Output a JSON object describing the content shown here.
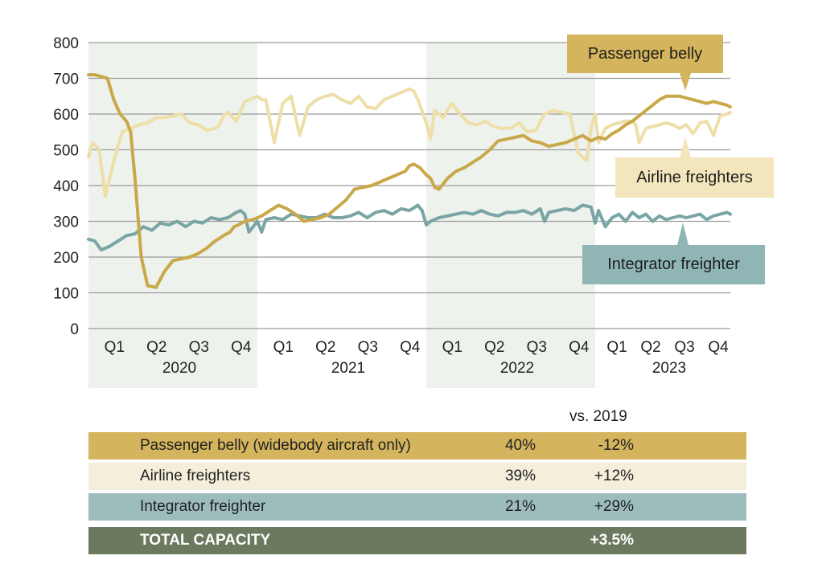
{
  "chart_data": {
    "type": "line",
    "title": "",
    "xlabel": "",
    "ylabel": "",
    "ylim": [
      0,
      800
    ],
    "yticks": [
      "0",
      "100",
      "200",
      "300",
      "400",
      "500",
      "600",
      "700",
      "800"
    ],
    "grid": true,
    "years": [
      "2020",
      "2021",
      "2022",
      "2023"
    ],
    "quarters": [
      "Q1",
      "Q2",
      "Q3",
      "Q4"
    ],
    "shaded_years": [
      "2020",
      "2022"
    ],
    "x_unit": "quarter index (0 = start of 2020, 16 = end of 2023)",
    "series": [
      {
        "name": "Passenger belly",
        "color": "#c9a84a",
        "x": [
          0,
          0.15,
          0.3,
          0.45,
          0.6,
          0.75,
          0.9,
          1.0,
          1.1,
          1.25,
          1.4,
          1.6,
          1.8,
          2.0,
          2.2,
          2.4,
          2.6,
          2.8,
          3.0,
          3.2,
          3.35,
          3.45,
          3.55,
          3.7,
          3.9,
          4.1,
          4.3,
          4.5,
          4.7,
          4.9,
          5.1,
          5.3,
          5.5,
          5.7,
          5.9,
          6.1,
          6.3,
          6.5,
          6.7,
          6.9,
          7.1,
          7.3,
          7.5,
          7.6,
          7.7,
          7.85,
          8.0,
          8.1,
          8.2,
          8.3,
          8.5,
          8.7,
          8.9,
          9.1,
          9.3,
          9.5,
          9.7,
          9.9,
          10.1,
          10.3,
          10.5,
          10.7,
          10.9,
          11.1,
          11.3,
          11.5,
          11.7,
          11.9,
          12.1,
          12.3,
          12.5,
          12.7,
          12.9,
          13.1,
          13.3,
          13.5,
          13.7,
          13.9,
          14.1,
          14.3,
          14.5,
          14.7,
          14.9,
          15.1,
          15.3,
          15.5,
          15.7,
          15.9,
          16.0
        ],
        "values": [
          710,
          710,
          705,
          700,
          640,
          600,
          580,
          550,
          420,
          200,
          120,
          115,
          160,
          190,
          195,
          200,
          210,
          225,
          245,
          260,
          270,
          285,
          290,
          300,
          305,
          315,
          330,
          345,
          335,
          320,
          300,
          305,
          310,
          320,
          340,
          360,
          390,
          395,
          400,
          410,
          420,
          430,
          440,
          455,
          460,
          450,
          430,
          420,
          395,
          390,
          420,
          440,
          450,
          465,
          480,
          500,
          525,
          530,
          535,
          540,
          525,
          520,
          510,
          515,
          520,
          530,
          540,
          525,
          535,
          530,
          545,
          555,
          570,
          580,
          595,
          610,
          625,
          640,
          650,
          650,
          650,
          645,
          640,
          635,
          630,
          635,
          630,
          625,
          620
        ]
      },
      {
        "name": "Airline freighters",
        "color": "#eedfa9",
        "x": [
          0,
          0.1,
          0.25,
          0.4,
          0.5,
          0.6,
          0.8,
          1.0,
          1.2,
          1.4,
          1.6,
          1.8,
          2.0,
          2.2,
          2.4,
          2.6,
          2.8,
          3.0,
          3.1,
          3.2,
          3.3,
          3.5,
          3.7,
          3.9,
          4.0,
          4.1,
          4.2,
          4.4,
          4.6,
          4.8,
          5.0,
          5.2,
          5.4,
          5.6,
          5.8,
          6.0,
          6.2,
          6.4,
          6.6,
          6.8,
          7.0,
          7.2,
          7.4,
          7.6,
          7.7,
          7.8,
          8.0,
          8.1,
          8.2,
          8.4,
          8.6,
          8.8,
          9.0,
          9.2,
          9.4,
          9.6,
          9.8,
          10.0,
          10.2,
          10.4,
          10.6,
          10.7,
          10.8,
          11.0,
          11.2,
          11.4,
          11.6,
          11.8,
          11.9,
          12.0,
          12.1,
          12.2,
          12.3,
          12.5,
          12.7,
          12.9,
          13.1,
          13.2,
          13.3,
          13.5,
          13.7,
          13.9,
          14.1,
          14.3,
          14.5,
          14.7,
          14.9,
          15.1,
          15.3,
          15.5,
          15.7,
          15.9,
          16.0
        ],
        "values": [
          480,
          520,
          500,
          370,
          420,
          470,
          550,
          560,
          570,
          575,
          590,
          590,
          595,
          600,
          575,
          570,
          555,
          560,
          570,
          595,
          605,
          580,
          635,
          645,
          650,
          640,
          640,
          520,
          630,
          650,
          540,
          620,
          640,
          650,
          655,
          640,
          630,
          650,
          620,
          615,
          640,
          650,
          660,
          670,
          665,
          640,
          575,
          530,
          610,
          590,
          630,
          600,
          575,
          570,
          580,
          565,
          560,
          560,
          575,
          550,
          555,
          580,
          600,
          610,
          605,
          600,
          490,
          470,
          560,
          600,
          520,
          540,
          560,
          570,
          575,
          580,
          580,
          570,
          520,
          560,
          565,
          570,
          575,
          570,
          560,
          570,
          545,
          575,
          580,
          540,
          595,
          600,
          605
        ]
      },
      {
        "name": "Integrator freighter",
        "color": "#7aa5a5",
        "x": [
          0,
          0.15,
          0.3,
          0.5,
          0.7,
          0.9,
          1.1,
          1.3,
          1.5,
          1.7,
          1.9,
          2.1,
          2.3,
          2.5,
          2.7,
          2.9,
          3.1,
          3.3,
          3.5,
          3.6,
          3.7,
          3.8,
          4.0,
          4.1,
          4.2,
          4.4,
          4.6,
          4.8,
          5.0,
          5.2,
          5.4,
          5.6,
          5.8,
          6.0,
          6.2,
          6.4,
          6.6,
          6.8,
          7.0,
          7.2,
          7.4,
          7.6,
          7.8,
          7.9,
          8.0,
          8.1,
          8.3,
          8.5,
          8.7,
          8.9,
          9.1,
          9.3,
          9.5,
          9.7,
          9.9,
          10.1,
          10.3,
          10.5,
          10.7,
          10.8,
          10.9,
          11.1,
          11.3,
          11.5,
          11.7,
          11.9,
          12.0,
          12.1,
          12.3,
          12.5,
          12.7,
          12.9,
          13.1,
          13.3,
          13.5,
          13.7,
          13.9,
          14.1,
          14.3,
          14.5,
          14.7,
          14.9,
          15.1,
          15.3,
          15.5,
          15.7,
          15.9,
          16.0
        ],
        "values": [
          250,
          245,
          220,
          230,
          245,
          260,
          265,
          285,
          275,
          295,
          290,
          300,
          285,
          300,
          295,
          310,
          305,
          310,
          325,
          330,
          320,
          270,
          300,
          270,
          305,
          310,
          305,
          320,
          315,
          310,
          310,
          320,
          310,
          310,
          315,
          325,
          310,
          325,
          330,
          320,
          335,
          330,
          345,
          330,
          290,
          300,
          310,
          315,
          320,
          325,
          320,
          330,
          320,
          315,
          325,
          325,
          330,
          320,
          335,
          300,
          325,
          330,
          335,
          330,
          345,
          340,
          295,
          330,
          285,
          310,
          320,
          300,
          325,
          310,
          320,
          300,
          315,
          305,
          310,
          315,
          310,
          315,
          320,
          305,
          315,
          320,
          325,
          320
        ]
      }
    ],
    "annotations": [
      {
        "text": "Passenger belly",
        "series": "Passenger belly"
      },
      {
        "text": "Airline freighters",
        "series": "Airline freighters"
      },
      {
        "text": "Integrator freighter",
        "series": "Integrator freighter"
      }
    ]
  },
  "table": {
    "header_change": "vs. 2019",
    "rows": [
      {
        "label": "Passenger belly (widebody aircraft only)",
        "share": "40%",
        "change": "-12%",
        "color": "#d4b45c"
      },
      {
        "label": "Airline freighters",
        "share": "39%",
        "change": "+12%",
        "color": "#f5eedb"
      },
      {
        "label": "Integrator freighter",
        "share": "21%",
        "change": "+29%",
        "color": "#9dbdbd"
      }
    ],
    "total": {
      "label": "TOTAL CAPACITY",
      "share": "",
      "change": "+3.5%",
      "color": "#6b7a5e"
    }
  }
}
